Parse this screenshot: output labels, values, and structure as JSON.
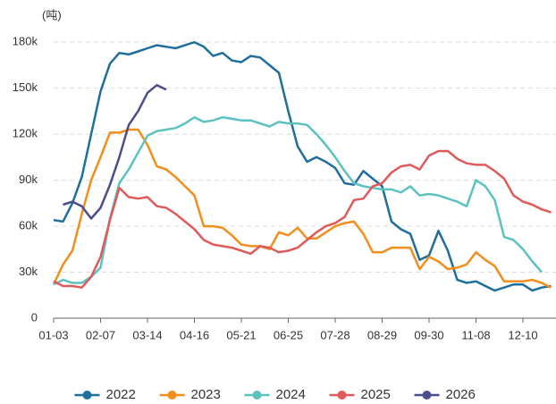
{
  "chart_data": {
    "type": "line",
    "y_unit_label": "(吨)",
    "categories": [
      "01-03",
      null,
      null,
      null,
      null,
      "02-07",
      null,
      null,
      null,
      null,
      "03-14",
      null,
      null,
      null,
      null,
      "04-16",
      null,
      null,
      null,
      null,
      "05-21",
      null,
      null,
      null,
      null,
      "06-25",
      null,
      null,
      null,
      null,
      "07-28",
      null,
      null,
      null,
      null,
      "08-29",
      null,
      null,
      null,
      null,
      "09-30",
      null,
      null,
      null,
      null,
      "11-08",
      null,
      null,
      null,
      null,
      "12-10",
      null,
      null,
      null
    ],
    "series": [
      {
        "name": "2022",
        "color": "#1f6e9c",
        "values": [
          64000,
          63000,
          75000,
          92000,
          120000,
          148000,
          166000,
          173000,
          172000,
          174000,
          176000,
          178000,
          177000,
          176000,
          178000,
          180000,
          177000,
          171000,
          173000,
          168000,
          167000,
          171000,
          170000,
          165000,
          160000,
          135000,
          112000,
          102000,
          105000,
          102000,
          98000,
          88000,
          87000,
          96000,
          91000,
          86000,
          63000,
          58000,
          55000,
          38000,
          41000,
          57000,
          44000,
          25000,
          23000,
          24000,
          21000,
          18000,
          20000,
          22000,
          22000,
          18000,
          20000,
          21000
        ]
      },
      {
        "name": "2023",
        "color": "#f28e1c",
        "values": [
          22000,
          35000,
          44000,
          68000,
          90000,
          105000,
          121000,
          121000,
          123000,
          123000,
          113000,
          99000,
          97000,
          92000,
          86000,
          80000,
          60000,
          60000,
          59000,
          54000,
          48000,
          47000,
          47000,
          45000,
          56000,
          54000,
          59000,
          52000,
          52000,
          56000,
          60000,
          62000,
          63000,
          55000,
          43000,
          43000,
          46000,
          46000,
          46000,
          32000,
          40000,
          37000,
          32000,
          33000,
          35000,
          43000,
          38000,
          34000,
          24000,
          24000,
          24000,
          25000,
          23000,
          20000
        ]
      },
      {
        "name": "2024",
        "color": "#5cc2c0",
        "values": [
          22000,
          25000,
          23000,
          23000,
          27000,
          33000,
          65000,
          88000,
          97000,
          108000,
          119000,
          122000,
          123000,
          124000,
          127000,
          131000,
          128000,
          129000,
          131000,
          130000,
          129000,
          129000,
          127000,
          125000,
          128000,
          127000,
          127000,
          126000,
          120000,
          113000,
          105000,
          96000,
          88000,
          86000,
          85000,
          84000,
          84000,
          82000,
          86000,
          80000,
          81000,
          80000,
          78000,
          76000,
          73000,
          90000,
          86000,
          77000,
          53000,
          51000,
          45000,
          37000,
          30000,
          null
        ]
      },
      {
        "name": "2025",
        "color": "#e05a5a",
        "values": [
          24000,
          21000,
          21000,
          20000,
          27000,
          40000,
          64000,
          85000,
          79000,
          78000,
          79000,
          73000,
          72000,
          68000,
          63000,
          58000,
          51000,
          48000,
          47000,
          46000,
          44000,
          42000,
          47000,
          46000,
          43000,
          44000,
          46000,
          51000,
          56000,
          60000,
          62000,
          66000,
          77000,
          78000,
          86000,
          88000,
          95000,
          99000,
          100000,
          97000,
          106000,
          109000,
          109000,
          104000,
          101000,
          100000,
          100000,
          96000,
          91000,
          80000,
          76000,
          74000,
          71000,
          69000
        ]
      },
      {
        "name": "2026",
        "color": "#4b4d8c",
        "values": [
          null,
          74000,
          76000,
          73000,
          65000,
          72000,
          87000,
          105000,
          126000,
          135000,
          147000,
          152000,
          149000,
          null,
          null,
          null,
          null,
          null,
          null,
          null,
          null,
          null,
          null,
          null,
          null,
          null,
          null,
          null,
          null,
          null,
          null,
          null,
          null,
          null,
          null,
          null,
          null,
          null,
          null,
          null,
          null,
          null,
          null,
          null,
          null,
          null,
          null,
          null,
          null,
          null,
          null,
          null,
          null,
          null
        ]
      }
    ],
    "ylim": [
      0,
      190000
    ],
    "yticks": [
      0,
      {
        "value": 30000,
        "label": "30k"
      },
      {
        "value": 60000,
        "label": "60k"
      },
      {
        "value": 90000,
        "label": "90k"
      },
      {
        "value": 120000,
        "label": "120k"
      },
      {
        "value": 150000,
        "label": "150k"
      },
      {
        "value": 180000,
        "label": "180k"
      }
    ],
    "grid": true,
    "legend": "bottom"
  }
}
